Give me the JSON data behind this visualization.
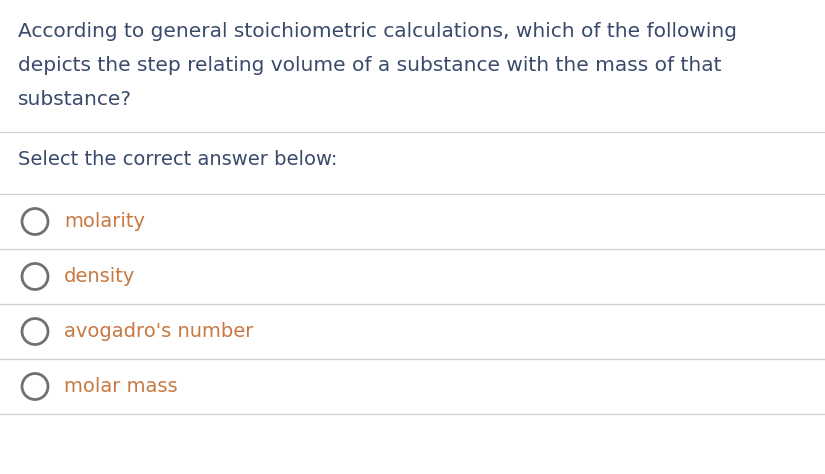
{
  "question_lines": [
    "According to general stoichiometric calculations, which of the following",
    "depicts the step relating volume of a substance with the mass of that",
    "substance?"
  ],
  "prompt": "Select the correct answer below:",
  "options": [
    "molarity",
    "density",
    "avogadro's number",
    "molar mass"
  ],
  "bg_color": "#ffffff",
  "question_color": "#3a4a6b",
  "option_color": "#c87941",
  "prompt_color": "#3a4a6b",
  "line_color": "#d0d0d0",
  "font_size_question": 14.5,
  "font_size_prompt": 14.0,
  "font_size_options": 14.0,
  "circle_color": "#707070",
  "fig_width": 8.25,
  "fig_height": 4.74,
  "dpi": 100
}
